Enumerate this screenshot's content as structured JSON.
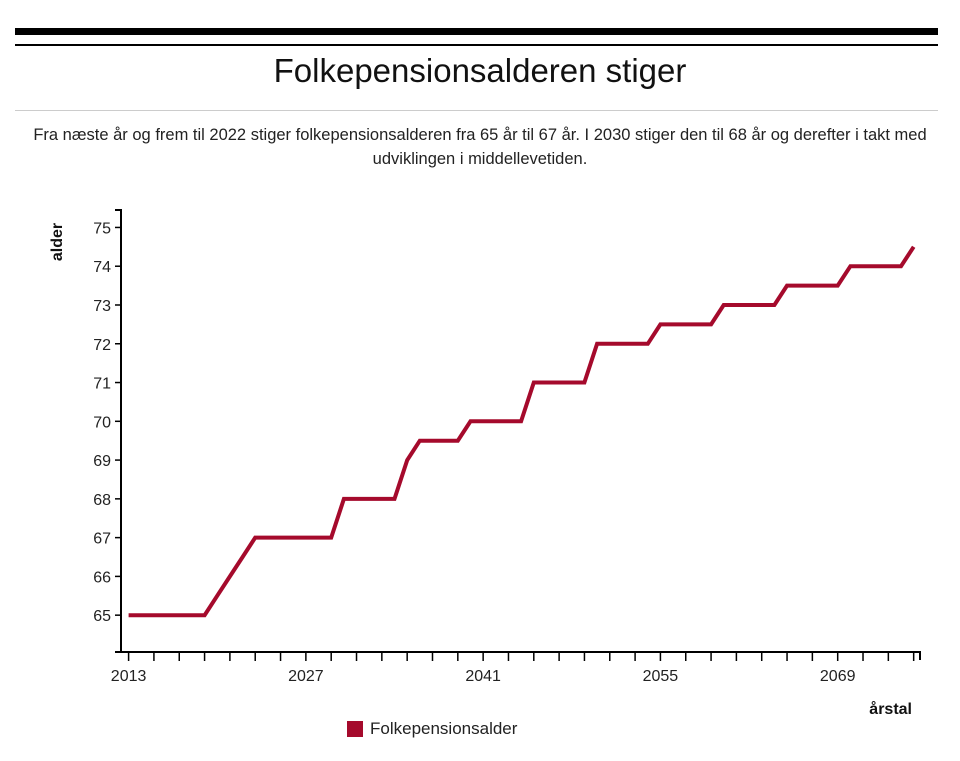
{
  "title": "Folkepensionsalderen stiger",
  "subtitle": "Fra næste år og frem til 2022 stiger folkepensionsalderen fra 65 år til 67 år. I 2030 stiger den til 68 år og derefter i takt med udviklingen i middellevetiden.",
  "chart_data": {
    "type": "line",
    "title": "Folkepensionsalderen stiger",
    "xlabel": "årstal",
    "ylabel": "alder",
    "xlim": [
      2012.4,
      2075.5
    ],
    "ylim": [
      64.05,
      75.45
    ],
    "x_ticks_minor_step": 2,
    "x_tick_labels": [
      2013,
      2027,
      2041,
      2055,
      2069
    ],
    "y_tick_labels": [
      65,
      66,
      67,
      68,
      69,
      70,
      71,
      72,
      73,
      74,
      75
    ],
    "grid": false,
    "legend_position": "bottom",
    "series": [
      {
        "name": "Folkepensionsalder",
        "color": "#a50a2c",
        "x": [
          2013,
          2014,
          2015,
          2016,
          2017,
          2018,
          2019,
          2020,
          2021,
          2022,
          2023,
          2024,
          2025,
          2026,
          2027,
          2028,
          2029,
          2030,
          2031,
          2032,
          2033,
          2034,
          2035,
          2036,
          2037,
          2038,
          2039,
          2040,
          2041,
          2042,
          2043,
          2044,
          2045,
          2046,
          2047,
          2048,
          2049,
          2050,
          2051,
          2052,
          2053,
          2054,
          2055,
          2056,
          2057,
          2058,
          2059,
          2060,
          2061,
          2062,
          2063,
          2064,
          2065,
          2066,
          2067,
          2068,
          2069,
          2070,
          2071,
          2072,
          2073,
          2074,
          2075
        ],
        "y": [
          65,
          65,
          65,
          65,
          65,
          65,
          65,
          65.5,
          66,
          66.5,
          67,
          67,
          67,
          67,
          67,
          67,
          67,
          68,
          68,
          68,
          68,
          68,
          69,
          69.5,
          69.5,
          69.5,
          69.5,
          70,
          70,
          70,
          70,
          70,
          71,
          71,
          71,
          71,
          71,
          72,
          72,
          72,
          72,
          72,
          72.5,
          72.5,
          72.5,
          72.5,
          72.5,
          73,
          73,
          73,
          73,
          73,
          73.5,
          73.5,
          73.5,
          73.5,
          73.5,
          74,
          74,
          74,
          74,
          74,
          74.5
        ]
      }
    ]
  }
}
